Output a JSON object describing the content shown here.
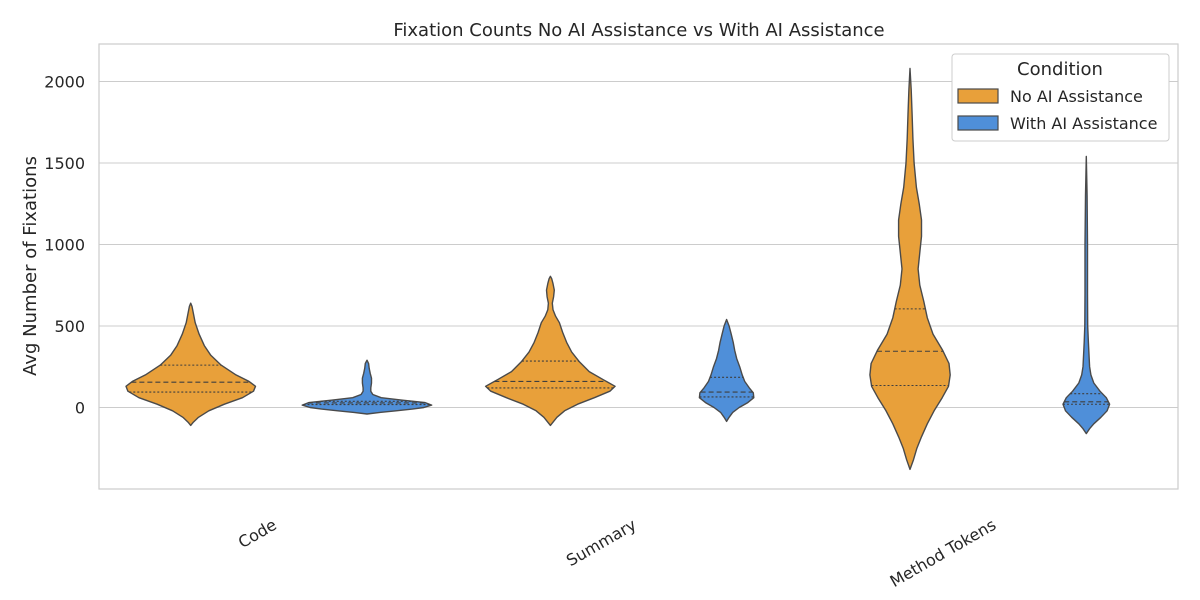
{
  "chart_data": {
    "type": "violin",
    "title": "Fixation Counts No AI Assistance vs With AI Assistance",
    "xlabel": "",
    "ylabel": "Avg Number of Fixations",
    "ylim": [
      -500,
      2230
    ],
    "yticks": [
      0,
      500,
      1000,
      1500,
      2000
    ],
    "ytick_labels": [
      "0",
      "500",
      "1000",
      "1500",
      "2000"
    ],
    "grid": "horizontal",
    "legend": {
      "title": "Condition",
      "placement": "top-right",
      "entries": [
        "No AI Assistance",
        "With AI Assistance"
      ]
    },
    "categories": [
      "Code",
      "Summary",
      "Method Tokens"
    ],
    "colors": {
      "No AI Assistance": "#e8a03a",
      "With AI Assistance": "#4f8fd9"
    },
    "series": [
      {
        "name": "No AI Assistance",
        "violins": [
          {
            "category": "Code",
            "quartiles": [
              95,
              155,
              260
            ],
            "profile": [
              [
                -110,
                0
              ],
              [
                -90,
                0.04
              ],
              [
                -60,
                0.12
              ],
              [
                -20,
                0.28
              ],
              [
                20,
                0.52
              ],
              [
                60,
                0.8
              ],
              [
                100,
                0.97
              ],
              [
                130,
                1.0
              ],
              [
                160,
                0.9
              ],
              [
                200,
                0.7
              ],
              [
                260,
                0.47
              ],
              [
                320,
                0.31
              ],
              [
                380,
                0.21
              ],
              [
                450,
                0.13
              ],
              [
                520,
                0.07
              ],
              [
                580,
                0.04
              ],
              [
                620,
                0.02
              ],
              [
                640,
                0
              ]
            ]
          },
          {
            "category": "Summary",
            "quartiles": [
              120,
              160,
              285
            ],
            "profile": [
              [
                -110,
                0
              ],
              [
                -90,
                0.04
              ],
              [
                -60,
                0.1
              ],
              [
                -20,
                0.22
              ],
              [
                20,
                0.42
              ],
              [
                60,
                0.68
              ],
              [
                100,
                0.92
              ],
              [
                130,
                1.0
              ],
              [
                170,
                0.82
              ],
              [
                220,
                0.6
              ],
              [
                280,
                0.45
              ],
              [
                340,
                0.33
              ],
              [
                400,
                0.25
              ],
              [
                460,
                0.19
              ],
              [
                520,
                0.14
              ],
              [
                560,
                0.08
              ],
              [
                600,
                0.04
              ],
              [
                640,
                0.03
              ],
              [
                680,
                0.05
              ],
              [
                720,
                0.06
              ],
              [
                760,
                0.04
              ],
              [
                790,
                0.02
              ],
              [
                805,
                0
              ]
            ]
          },
          {
            "category": "Method Tokens",
            "quartiles": [
              135,
              345,
              605
            ],
            "profile": [
              [
                -380,
                0
              ],
              [
                -320,
                0.06
              ],
              [
                -250,
                0.12
              ],
              [
                -180,
                0.2
              ],
              [
                -100,
                0.3
              ],
              [
                -20,
                0.42
              ],
              [
                60,
                0.56
              ],
              [
                130,
                0.67
              ],
              [
                200,
                0.7
              ],
              [
                270,
                0.68
              ],
              [
                350,
                0.57
              ],
              [
                450,
                0.4
              ],
              [
                550,
                0.3
              ],
              [
                650,
                0.24
              ],
              [
                750,
                0.17
              ],
              [
                850,
                0.14
              ],
              [
                950,
                0.17
              ],
              [
                1050,
                0.2
              ],
              [
                1150,
                0.2
              ],
              [
                1250,
                0.16
              ],
              [
                1350,
                0.11
              ],
              [
                1500,
                0.07
              ],
              [
                1650,
                0.05
              ],
              [
                1800,
                0.035
              ],
              [
                1950,
                0.02
              ],
              [
                2080,
                0
              ]
            ]
          }
        ]
      },
      {
        "name": "With AI Assistance",
        "violins": [
          {
            "category": "Code",
            "quartiles": [
              18,
              28,
              38
            ],
            "profile": [
              [
                -40,
                0
              ],
              [
                -30,
                0.2
              ],
              [
                -20,
                0.45
              ],
              [
                -10,
                0.7
              ],
              [
                0,
                0.88
              ],
              [
                15,
                1.0
              ],
              [
                30,
                0.9
              ],
              [
                45,
                0.55
              ],
              [
                60,
                0.22
              ],
              [
                80,
                0.09
              ],
              [
                100,
                0.06
              ],
              [
                120,
                0.06
              ],
              [
                150,
                0.07
              ],
              [
                180,
                0.07
              ],
              [
                210,
                0.05
              ],
              [
                240,
                0.035
              ],
              [
                270,
                0.025
              ],
              [
                290,
                0
              ]
            ]
          },
          {
            "category": "Summary",
            "quartiles": [
              65,
              95,
              185
            ],
            "profile": [
              [
                -85,
                0
              ],
              [
                -60,
                0.05
              ],
              [
                -30,
                0.12
              ],
              [
                0,
                0.25
              ],
              [
                30,
                0.42
              ],
              [
                60,
                0.54
              ],
              [
                90,
                0.53
              ],
              [
                120,
                0.45
              ],
              [
                160,
                0.36
              ],
              [
                200,
                0.31
              ],
              [
                250,
                0.26
              ],
              [
                300,
                0.2
              ],
              [
                350,
                0.16
              ],
              [
                400,
                0.13
              ],
              [
                450,
                0.09
              ],
              [
                500,
                0.05
              ],
              [
                540,
                0
              ]
            ]
          },
          {
            "category": "Method Tokens",
            "quartiles": [
              20,
              35,
              85
            ],
            "profile": [
              [
                -160,
                0
              ],
              [
                -130,
                0.08
              ],
              [
                -100,
                0.18
              ],
              [
                -60,
                0.35
              ],
              [
                -20,
                0.5
              ],
              [
                20,
                0.56
              ],
              [
                60,
                0.48
              ],
              [
                100,
                0.33
              ],
              [
                150,
                0.18
              ],
              [
                200,
                0.11
              ],
              [
                250,
                0.08
              ],
              [
                300,
                0.07
              ],
              [
                400,
                0.05
              ],
              [
                500,
                0.035
              ],
              [
                700,
                0.03
              ],
              [
                1000,
                0.03
              ],
              [
                1300,
                0.02
              ],
              [
                1540,
                0
              ]
            ]
          }
        ]
      }
    ]
  }
}
